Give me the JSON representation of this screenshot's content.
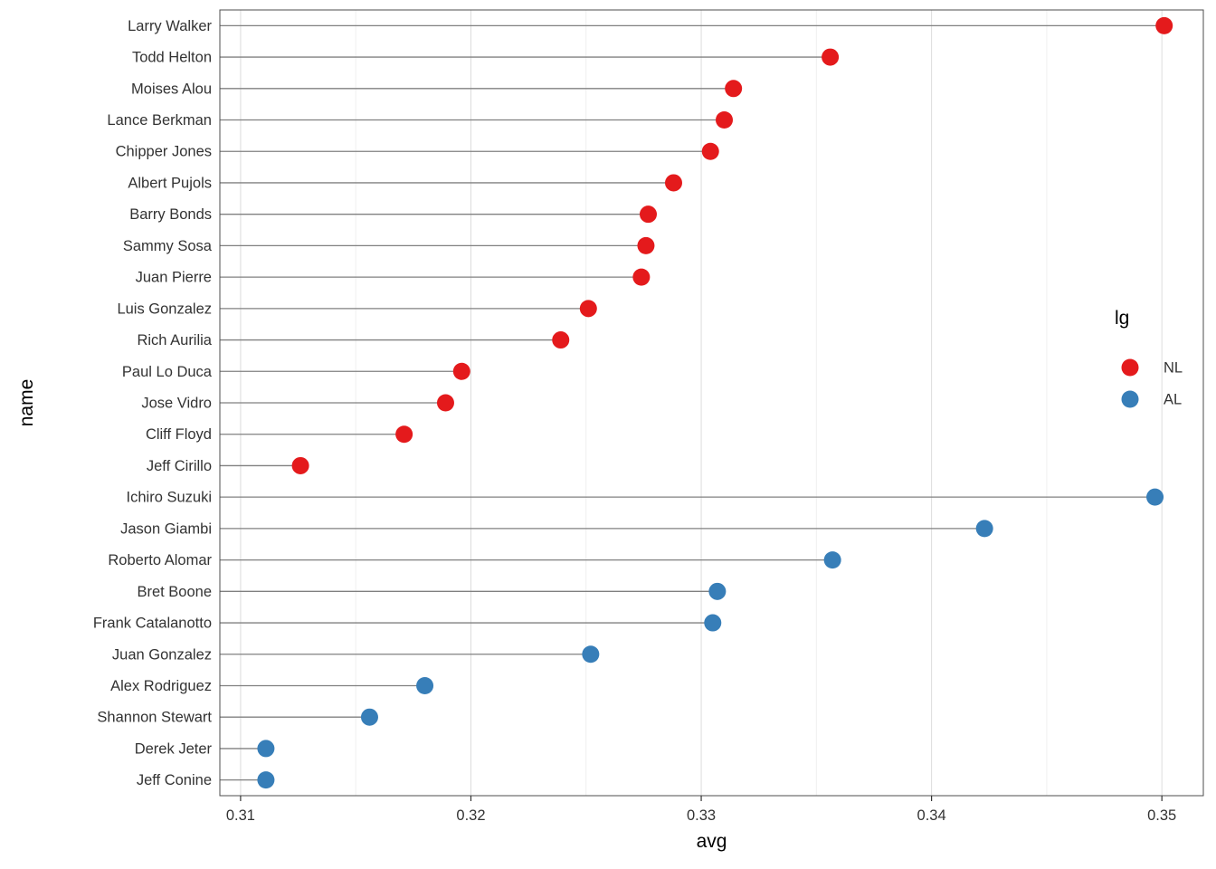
{
  "chart_data": {
    "type": "scatter",
    "variant": "lollipop-dot-plot",
    "title": "",
    "xlabel": "avg",
    "ylabel": "name",
    "xlim": [
      0.3091,
      0.3518
    ],
    "x_major_ticks": [
      0.31,
      0.32,
      0.33,
      0.34,
      0.35
    ],
    "x_tick_labels": [
      "0.31",
      "0.32",
      "0.33",
      "0.34",
      "0.35"
    ],
    "x_minor_ticks": [
      0.315,
      0.325,
      0.335,
      0.345
    ],
    "grid": true,
    "panel_background": "#ffffff",
    "panel_border_color": "#4d4d4d",
    "major_grid_color": "#dcdcdc",
    "minor_grid_color": "#efefef",
    "stem_color": "#808080",
    "axis_text_color": "#333333",
    "legend": {
      "title": "lg",
      "position": "right-inside",
      "entries": [
        {
          "label": "NL",
          "color": "#E41A1C"
        },
        {
          "label": "AL",
          "color": "#377EB8"
        }
      ]
    },
    "points": [
      {
        "name": "Larry Walker",
        "avg": 0.3501,
        "lg": "NL"
      },
      {
        "name": "Todd Helton",
        "avg": 0.3356,
        "lg": "NL"
      },
      {
        "name": "Moises Alou",
        "avg": 0.3314,
        "lg": "NL"
      },
      {
        "name": "Lance Berkman",
        "avg": 0.331,
        "lg": "NL"
      },
      {
        "name": "Chipper Jones",
        "avg": 0.3304,
        "lg": "NL"
      },
      {
        "name": "Albert Pujols",
        "avg": 0.3288,
        "lg": "NL"
      },
      {
        "name": "Barry Bonds",
        "avg": 0.3277,
        "lg": "NL"
      },
      {
        "name": "Sammy Sosa",
        "avg": 0.3276,
        "lg": "NL"
      },
      {
        "name": "Juan Pierre",
        "avg": 0.3274,
        "lg": "NL"
      },
      {
        "name": "Luis Gonzalez",
        "avg": 0.3251,
        "lg": "NL"
      },
      {
        "name": "Rich Aurilia",
        "avg": 0.3239,
        "lg": "NL"
      },
      {
        "name": "Paul Lo Duca",
        "avg": 0.3196,
        "lg": "NL"
      },
      {
        "name": "Jose Vidro",
        "avg": 0.3189,
        "lg": "NL"
      },
      {
        "name": "Cliff Floyd",
        "avg": 0.3171,
        "lg": "NL"
      },
      {
        "name": "Jeff Cirillo",
        "avg": 0.3126,
        "lg": "NL"
      },
      {
        "name": "Ichiro Suzuki",
        "avg": 0.3497,
        "lg": "AL"
      },
      {
        "name": "Jason Giambi",
        "avg": 0.3423,
        "lg": "AL"
      },
      {
        "name": "Roberto Alomar",
        "avg": 0.3357,
        "lg": "AL"
      },
      {
        "name": "Bret Boone",
        "avg": 0.3307,
        "lg": "AL"
      },
      {
        "name": "Frank Catalanotto",
        "avg": 0.3305,
        "lg": "AL"
      },
      {
        "name": "Juan Gonzalez",
        "avg": 0.3252,
        "lg": "AL"
      },
      {
        "name": "Alex Rodriguez",
        "avg": 0.318,
        "lg": "AL"
      },
      {
        "name": "Shannon Stewart",
        "avg": 0.3156,
        "lg": "AL"
      },
      {
        "name": "Derek Jeter",
        "avg": 0.3111,
        "lg": "AL"
      },
      {
        "name": "Jeff Conine",
        "avg": 0.3111,
        "lg": "AL"
      }
    ]
  }
}
